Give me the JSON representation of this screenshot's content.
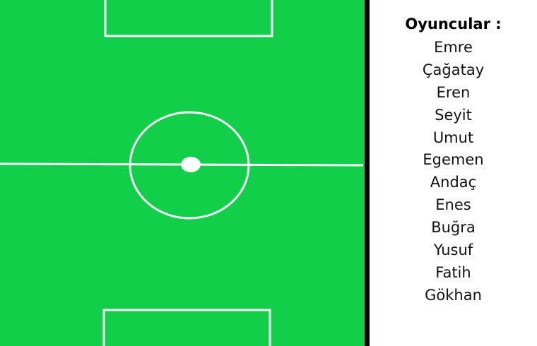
{
  "colors": {
    "pitch": "#12cf4a",
    "pitch_lines": "#ffffff",
    "divider": "#000000",
    "panel_background": "#ffffff"
  },
  "players_panel": {
    "title": "Oyuncular :",
    "players": [
      "Emre",
      "Çağatay",
      "Eren",
      "Seyit",
      "Umut",
      "Egemen",
      "Andaç",
      "Enes",
      "Buğra",
      "Yusuf",
      "Fatih",
      "Gökhan"
    ]
  }
}
